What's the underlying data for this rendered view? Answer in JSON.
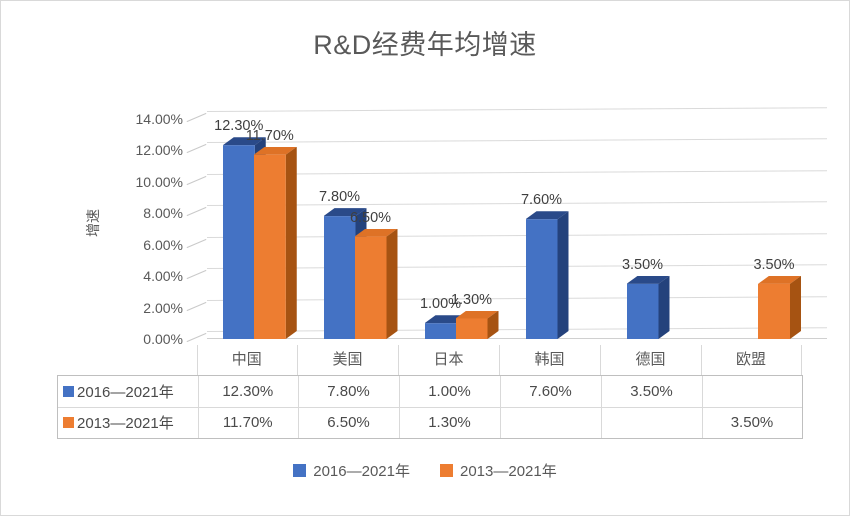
{
  "title": "R&D经费年均增速",
  "chart_data": {
    "type": "bar",
    "style": "3d-clustered-column",
    "title": "R&D经费年均增速",
    "xlabel": "",
    "ylabel": "增速",
    "ylim": [
      0,
      14
    ],
    "ytick_step": 2,
    "yticks": [
      "0.00%",
      "2.00%",
      "4.00%",
      "6.00%",
      "8.00%",
      "10.00%",
      "12.00%",
      "14.00%"
    ],
    "grid": true,
    "legend_position": "bottom",
    "data_labels": true,
    "categories": [
      "中国",
      "美国",
      "日本",
      "韩国",
      "德国",
      "欧盟"
    ],
    "series": [
      {
        "name": "2016—2021年",
        "color": "#4472C4",
        "color_top": "#2A4A89",
        "color_side": "#24427C",
        "values": [
          12.3,
          7.8,
          1.0,
          7.6,
          3.5,
          null
        ],
        "labels": [
          "12.30%",
          "7.80%",
          "1.00%",
          "7.60%",
          "3.50%",
          ""
        ]
      },
      {
        "name": "2013—2021年",
        "color": "#ED7D31",
        "color_top": "#DE7226",
        "color_side": "#A65312",
        "values": [
          11.7,
          6.5,
          1.3,
          null,
          null,
          3.5
        ],
        "labels": [
          "11.70%",
          "6.50%",
          "1.30%",
          "",
          "",
          "3.50%"
        ]
      }
    ]
  },
  "table": {
    "columns": [
      "中国",
      "美国",
      "日本",
      "韩国",
      "德国",
      "欧盟"
    ],
    "rows": [
      {
        "legend": "2016—2021年",
        "color": "#4472C4",
        "values": [
          "12.30%",
          "7.80%",
          "1.00%",
          "7.60%",
          "3.50%",
          ""
        ]
      },
      {
        "legend": "2013—2021年",
        "color": "#ED7D31",
        "values": [
          "11.70%",
          "6.50%",
          "1.30%",
          "",
          "",
          "3.50%"
        ]
      }
    ]
  },
  "legend": {
    "items": [
      {
        "label": "2016—2021年",
        "color": "#4472C4"
      },
      {
        "label": "2013—2021年",
        "color": "#ED7D31"
      }
    ]
  },
  "colors": {
    "grid": "#DADADA",
    "axis_text": "#595959",
    "label_text": "#3F3F3F",
    "table_border": "#BFBFBF"
  }
}
